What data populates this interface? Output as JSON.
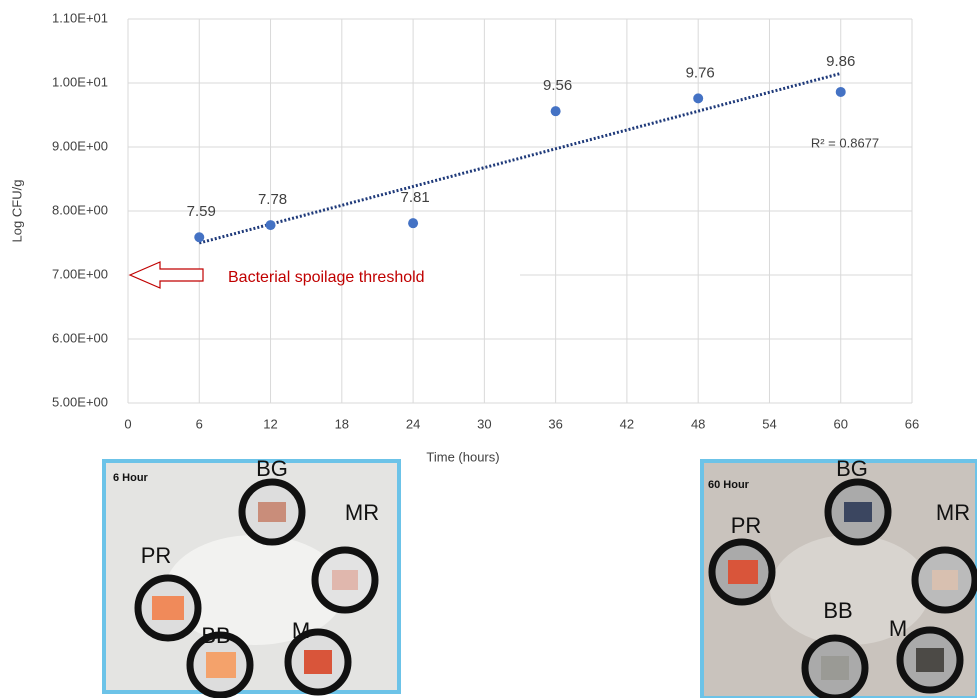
{
  "chart_data": {
    "type": "scatter",
    "x_label": "Time (hours)",
    "y_label": "Log CFU/g",
    "x": [
      6,
      12,
      24,
      36,
      48,
      60
    ],
    "series": [
      {
        "color": "#4472c4",
        "values": [
          7.59,
          7.78,
          7.81,
          9.56,
          9.76,
          9.86
        ]
      }
    ],
    "trendline": {
      "type": "linear",
      "color": "#1f3a7a",
      "label": "R² = 0.8677"
    },
    "annotation": {
      "text": "Bacterial spoilage threshold",
      "value": 7,
      "color": "#c00000"
    },
    "xlim": [
      0,
      66
    ],
    "xticks": [
      0,
      6,
      12,
      18,
      24,
      30,
      36,
      42,
      48,
      54,
      60,
      66
    ],
    "ylim": [
      5,
      11
    ],
    "yticks": [
      {
        "value": 5,
        "label": "5.00E+00"
      },
      {
        "value": 6,
        "label": "6.00E+00"
      },
      {
        "value": 7,
        "label": "7.00E+00"
      },
      {
        "value": 8,
        "label": "8.00E+00"
      },
      {
        "value": 9,
        "label": "9.00E+00"
      },
      {
        "value": 10,
        "label": "1.00E+01"
      },
      {
        "value": 11,
        "label": "1.10E+01"
      }
    ],
    "grid": true
  },
  "insets": [
    {
      "title": "6 Hour",
      "labels": [
        "BG",
        "PR",
        "MR",
        "BB",
        "M"
      ]
    },
    {
      "title": "60 Hour",
      "labels": [
        "BG",
        "PR",
        "MR",
        "BB",
        "M"
      ]
    }
  ]
}
